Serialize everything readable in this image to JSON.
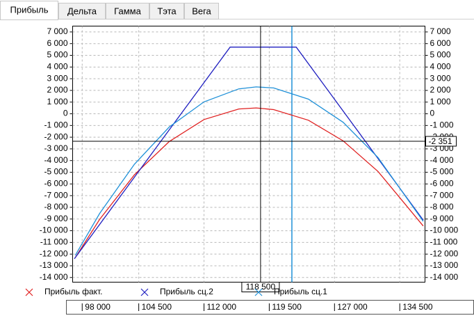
{
  "tabs": [
    "Прибыль",
    "Дельта",
    "Гамма",
    "Тэта",
    "Вега"
  ],
  "chart_data": {
    "type": "line",
    "series": [
      {
        "name": "Прибыль факт.",
        "color": "#e02020",
        "x": [
          97200,
          100000,
          104000,
          108000,
          112000,
          116000,
          118000,
          120000,
          124000,
          128000,
          132000,
          137200
        ],
        "values": [
          -12300,
          -9040,
          -5220,
          -2370,
          -490,
          410,
          500,
          360,
          -550,
          -2320,
          -4930,
          -9600
        ]
      },
      {
        "name": "Прибыль сц.2",
        "color": "#2020c0",
        "x": [
          97100,
          115000,
          122600,
          137200
        ],
        "values": [
          -12400,
          5700,
          5700,
          -9100
        ]
      },
      {
        "name": "Прибыль сц.1",
        "color": "#1e90d8",
        "x": [
          97200,
          100000,
          104000,
          108000,
          112000,
          116000,
          118000,
          120000,
          124000,
          128000,
          132000,
          137200
        ],
        "values": [
          -12100,
          -8530,
          -4310,
          -1130,
          1020,
          2130,
          2300,
          2210,
          1250,
          -730,
          -3740,
          -9200
        ]
      }
    ],
    "xlim": [
      96900,
      137400
    ],
    "ylim": [
      -14400,
      7500
    ],
    "xticks": [
      {
        "value": 98000,
        "label": "98 000"
      },
      {
        "value": 104500,
        "label": "104 500"
      },
      {
        "value": 112000,
        "label": "112 000"
      },
      {
        "value": 119500,
        "label": "119 500"
      },
      {
        "value": 127000,
        "label": "127 000"
      },
      {
        "value": 134500,
        "label": "134 500"
      }
    ],
    "yticks": [
      {
        "value": 7000,
        "label": "7 000"
      },
      {
        "value": 6000,
        "label": "6 000"
      },
      {
        "value": 5000,
        "label": "5 000"
      },
      {
        "value": 4000,
        "label": "4 000"
      },
      {
        "value": 3000,
        "label": "3 000"
      },
      {
        "value": 2000,
        "label": "2 000"
      },
      {
        "value": 1000,
        "label": "1 000"
      },
      0,
      {
        "value": -1000,
        "label": "-1 000"
      },
      {
        "value": -2000,
        "label": "-2 000"
      },
      {
        "value": -3000,
        "label": "-3 000"
      },
      {
        "value": -4000,
        "label": "-4 000"
      },
      {
        "value": -5000,
        "label": "-5 000"
      },
      {
        "value": -6000,
        "label": "-6 000"
      },
      {
        "value": -7000,
        "label": "-7 000"
      },
      {
        "value": -8000,
        "label": "-8 000"
      },
      {
        "value": -9000,
        "label": "-9 000"
      },
      {
        "value": -10000,
        "label": "-10 000"
      },
      {
        "value": -11000,
        "label": "-11 000"
      },
      {
        "value": -12000,
        "label": "-12 000"
      },
      {
        "value": -13000,
        "label": "-13 000"
      },
      {
        "value": -14000,
        "label": "-14 000"
      }
    ],
    "grid": true,
    "marker_x": 122100,
    "marker_color": "#1e90d8",
    "cursor_x": {
      "value": 118500,
      "label": "118 500"
    },
    "cursor_y": {
      "value": -2351,
      "label": "-2 351"
    }
  }
}
